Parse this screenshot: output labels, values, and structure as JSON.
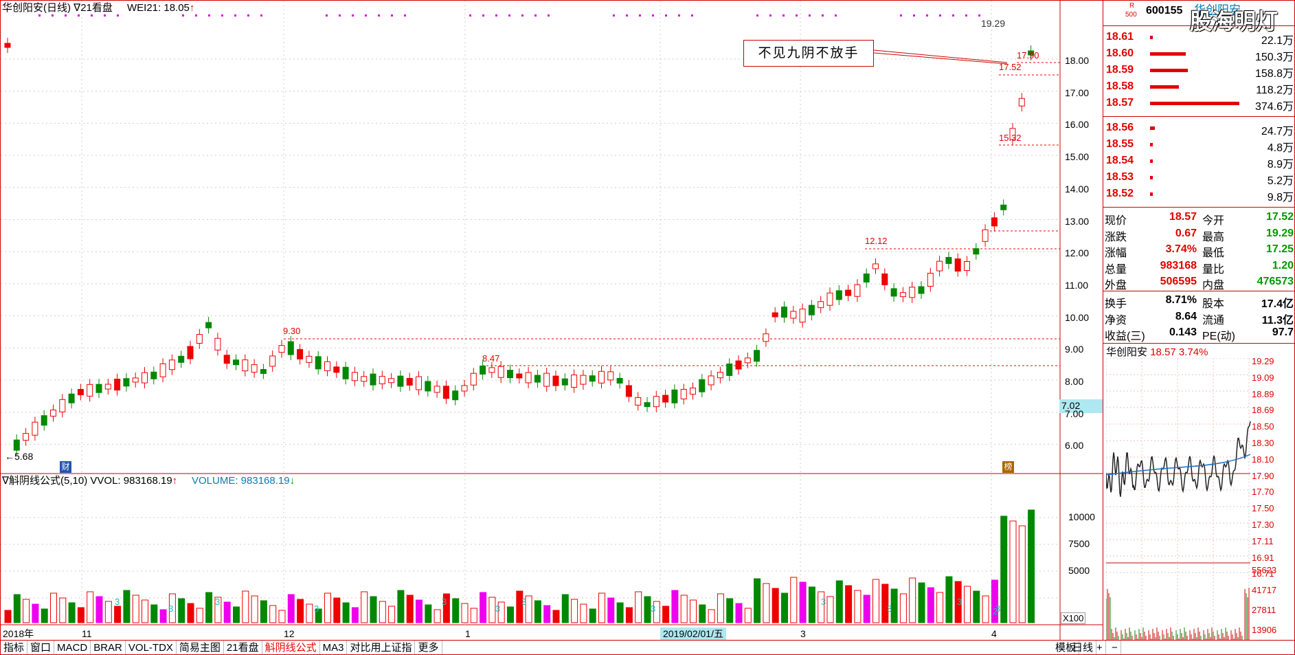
{
  "header": {
    "title": "华创阳安(日线)",
    "triangle1": "∇",
    "indicator_name": "21看盘",
    "wei_label": "WEI21: 18.05",
    "wei_arrow": "↑",
    "top_price": "19.29"
  },
  "annotation": {
    "text": "不见九阴不放手"
  },
  "price_labels": {
    "p1790": "17.90",
    "p1752": "17.52",
    "p1532": "15.32",
    "p1212": "12.12",
    "p930": "9.30",
    "p847": "8.47",
    "p568": "5.68",
    "p702": "7.02"
  },
  "price_axis": [
    "18.00",
    "17.00",
    "16.00",
    "15.00",
    "14.00",
    "13.00",
    "12.00",
    "11.00",
    "10.00",
    "9.00",
    "8.00",
    "7.00",
    "6.00"
  ],
  "date_axis": [
    "2018年",
    "11",
    "12",
    "1",
    "2019/02/01/五",
    "3",
    "4"
  ],
  "badges": {
    "cai": "财",
    "bang": "榜"
  },
  "volume_header": {
    "triangle": "∇",
    "name": "斛阴线公式(5,10)",
    "vvol": "VVOL: 983168.19",
    "vvol_arrow": "↑",
    "volume": "VOLUME: 983168.19",
    "volume_arrow": "↓"
  },
  "volume_axis": [
    "10000",
    "7500",
    "5000"
  ],
  "volume_unit": "X100",
  "volume_marks": [
    "3",
    "3",
    "3",
    "3",
    "3",
    "3",
    "3",
    "3",
    "3",
    "3",
    "3",
    "3",
    "2"
  ],
  "stock": {
    "badge_r": "R",
    "badge_num": "500",
    "code": "600155",
    "name": "华创阳安",
    "watermark": "股海明灯"
  },
  "asks": [
    {
      "price": "18.61",
      "vol": "22.1万",
      "bar": 0.03
    },
    {
      "price": "18.60",
      "vol": "150.3万",
      "bar": 0.4
    },
    {
      "price": "18.59",
      "vol": "158.8万",
      "bar": 0.42
    },
    {
      "price": "18.58",
      "vol": "118.2万",
      "bar": 0.32
    },
    {
      "price": "18.57",
      "vol": "374.6万",
      "bar": 1.0
    }
  ],
  "bids": [
    {
      "price": "18.56",
      "vol": "24.7万",
      "bar": 0.05
    },
    {
      "price": "18.55",
      "vol": "4.8万",
      "bar": 0.01
    },
    {
      "price": "18.54",
      "vol": "8.9万",
      "bar": 0.02
    },
    {
      "price": "18.53",
      "vol": "5.2万",
      "bar": 0.01
    },
    {
      "price": "18.52",
      "vol": "9.8万",
      "bar": 0.02
    }
  ],
  "quote": [
    {
      "l1": "现价",
      "v1": "18.57",
      "l2": "今开",
      "v2": "17.52"
    },
    {
      "l1": "涨跌",
      "v1": "0.67",
      "l2": "最高",
      "v2": "19.29"
    },
    {
      "l1": "涨幅",
      "v1": "3.74%",
      "l2": "最低",
      "v2": "17.25"
    },
    {
      "l1": "总量",
      "v1": "983168",
      "l2": "量比",
      "v2": "1.20"
    },
    {
      "l1": "外盘",
      "v1": "506595",
      "l2": "内盘",
      "v2": "476573"
    }
  ],
  "fund": [
    {
      "l1": "换手",
      "v1": "8.71%",
      "l2": "股本",
      "v2": "17.4亿"
    },
    {
      "l1": "净资",
      "v1": "8.64",
      "l2": "流通",
      "v2": "11.3亿"
    },
    {
      "l1": "收益(三)",
      "v1": "0.143",
      "l2": "PE(动)",
      "v2": "97.7"
    }
  ],
  "mini": {
    "name": "华创阳安",
    "price": "18.57",
    "pct": "3.74%",
    "axis": [
      "19.29",
      "19.09",
      "18.89",
      "18.69",
      "18.50",
      "18.30",
      "18.10",
      "17.90",
      "17.70",
      "17.50",
      "17.30",
      "17.11",
      "16.91",
      "16.71"
    ],
    "vol_axis": [
      "55623",
      "41717",
      "27811",
      "13906"
    ]
  },
  "tabs": [
    "指标",
    "窗口",
    "MACD",
    "BRAR",
    "VOL-TDX",
    "简易主图",
    "21看盘",
    "斛阴线公式",
    "MA3",
    "对比用上证指",
    "更多"
  ],
  "right_tabs": {
    "mode": "模板",
    "day": "日线",
    "plus": "+",
    "minus": "−"
  }
}
